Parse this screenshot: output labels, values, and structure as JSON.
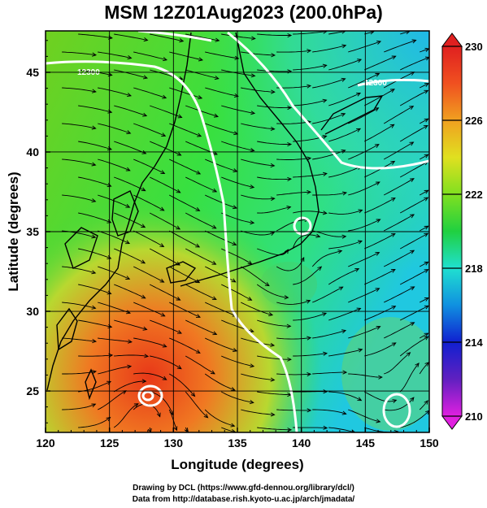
{
  "title": "MSM 12Z01Aug2023 (200.0hPa)",
  "x_axis": {
    "label": "Longitude (degrees)",
    "ticks": [
      "120",
      "125",
      "130",
      "135",
      "140",
      "145",
      "150"
    ],
    "min": 120,
    "max": 150
  },
  "y_axis": {
    "label": "Latitude  (degrees)",
    "ticks": [
      "25",
      "30",
      "35",
      "40",
      "45"
    ],
    "min": 22.4,
    "max": 47.6
  },
  "colorbar": {
    "ticks": [
      "210",
      "214",
      "218",
      "222",
      "226",
      "230"
    ],
    "min": 210,
    "max": 230,
    "colors": [
      "#e020e0",
      "#6020c0",
      "#1020d0",
      "#1090e0",
      "#20e0d0",
      "#20d040",
      "#80e020",
      "#e0e020",
      "#f0a020",
      "#f05020",
      "#e02020"
    ]
  },
  "field": {
    "background_gradient": [
      {
        "where": "northeast",
        "color": "#20c8e0"
      },
      {
        "where": "north",
        "color": "#40e080"
      },
      {
        "where": "northwest",
        "color": "#60d020"
      },
      {
        "where": "center",
        "color": "#30e050"
      },
      {
        "where": "southwest",
        "color": "#f07020"
      },
      {
        "where": "southeast",
        "color": "#60d060"
      }
    ],
    "warm_core": {
      "lon": 128.0,
      "lat": 25.0,
      "color": "#e83818"
    },
    "contour_labels": [
      "12300",
      "12300"
    ]
  },
  "credits": [
    "Drawing by DCL (https://www.gfd-dennou.org/library/dcl/)",
    "Data from http://database.rish.kyoto-u.ac.jp/arch/jmadata/"
  ]
}
